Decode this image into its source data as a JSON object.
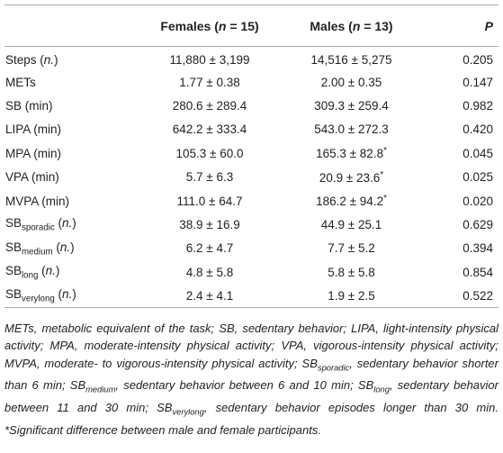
{
  "table": {
    "header": [
      "",
      [
        {
          "text": "Females ("
        },
        {
          "text": "n",
          "style": "italic"
        },
        {
          "text": " = 15)"
        }
      ],
      [
        {
          "text": "Males ("
        },
        {
          "text": "n",
          "style": "italic"
        },
        {
          "text": " = 13)"
        }
      ],
      [
        {
          "text": "P",
          "style": "italic"
        }
      ]
    ],
    "rows": [
      [
        [
          {
            "text": "Steps ("
          },
          {
            "text": "n.",
            "style": "italic"
          },
          {
            "text": ")"
          }
        ],
        "11,880 ± 3,199",
        "14,516 ± 5,275",
        "0.205"
      ],
      [
        "METs",
        "1.77 ± 0.38",
        "2.00 ± 0.35",
        "0.147"
      ],
      [
        "SB (min)",
        "280.6 ± 289.4",
        "309.3 ± 259.4",
        "0.982"
      ],
      [
        "LIPA (min)",
        "642.2 ± 333.4",
        "543.0 ± 272.3",
        "0.420"
      ],
      [
        "MPA (min)",
        "105.3 ± 60.0",
        [
          {
            "text": "165.3 ± 82.8"
          },
          {
            "text": "*",
            "style": "sup"
          }
        ],
        "0.045"
      ],
      [
        "VPA (min)",
        "5.7 ± 6.3",
        [
          {
            "text": "20.9 ± 23.6"
          },
          {
            "text": "*",
            "style": "sup"
          }
        ],
        "0.025"
      ],
      [
        "MVPA (min)",
        "111.0 ± 64.7",
        [
          {
            "text": "186.2 ± 94.2"
          },
          {
            "text": "*",
            "style": "sup"
          }
        ],
        "0.020"
      ],
      [
        [
          {
            "text": "SB"
          },
          {
            "text": "sporadic",
            "style": "sub"
          },
          {
            "text": " ("
          },
          {
            "text": "n.",
            "style": "italic"
          },
          {
            "text": ")"
          }
        ],
        "38.9 ± 16.9",
        "44.9 ± 25.1",
        "0.629"
      ],
      [
        [
          {
            "text": "SB"
          },
          {
            "text": "medium",
            "style": "sub"
          },
          {
            "text": " ("
          },
          {
            "text": "n.",
            "style": "italic"
          },
          {
            "text": ")"
          }
        ],
        "6.2 ± 4.7",
        "7.7 ± 5.2",
        "0.394"
      ],
      [
        [
          {
            "text": "SB"
          },
          {
            "text": "long",
            "style": "sub"
          },
          {
            "text": " ("
          },
          {
            "text": "n.",
            "style": "italic"
          },
          {
            "text": ")"
          }
        ],
        "4.8 ± 5.8",
        "5.8 ± 5.8",
        "0.854"
      ],
      [
        [
          {
            "text": "SB"
          },
          {
            "text": "verylong",
            "style": "sub"
          },
          {
            "text": " ("
          },
          {
            "text": "n.",
            "style": "italic"
          },
          {
            "text": ")"
          }
        ],
        "2.4 ± 4.1",
        "1.9 ± 2.5",
        "0.522"
      ]
    ],
    "footnote": [
      {
        "text": "METs, metabolic equivalent of the task; SB, sedentary behavior; LIPA, light-intensity physical activity; MPA, moderate-intensity physical activity; VPA, vigorous-intensity physical activity; MVPA, moderate- to vigorous-intensity physical activity; SB"
      },
      {
        "text": "sporadic",
        "style": "sub"
      },
      {
        "text": ", sedentary behavior shorter than 6 min; SB"
      },
      {
        "text": "medium",
        "style": "sub"
      },
      {
        "text": ", sedentary behavior between 6 and 10 min; SB"
      },
      {
        "text": "long",
        "style": "sub"
      },
      {
        "text": ", sedentary behavior between 11 and 30 min; SB"
      },
      {
        "text": "verylong",
        "style": "sub"
      },
      {
        "text": ", sedentary behavior episodes longer than 30 min. *Significant difference between male and female participants."
      }
    ]
  }
}
